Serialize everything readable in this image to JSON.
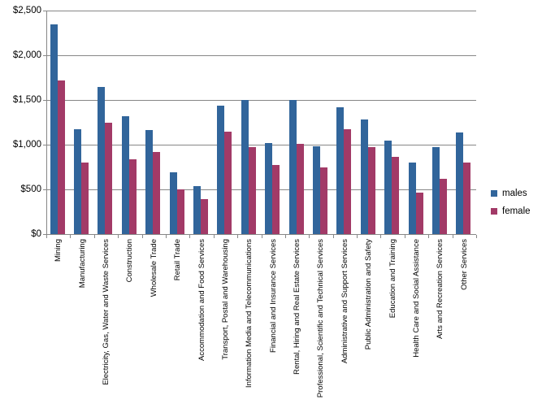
{
  "chart_data": {
    "type": "bar",
    "title": "",
    "xlabel": "",
    "ylabel": "",
    "categories": [
      "Mining",
      "Manufacturing",
      "Electricity, Gas, Water and Waste Services",
      "Construction",
      "Wholesale Trade",
      "Retail Trade",
      "Accommodation and Food Services",
      "Transport, Postal and Warehousing",
      "Information Media and Telecommunications",
      "Financial and Insurance Services",
      "Rental, Hiring and Real Estate Services",
      "Professional, Scientific and Technical Services",
      "Administrative and Support Services",
      "Public Administration and Safety",
      "Education and Training",
      "Health Care and Social Assistance",
      "Arts and Recreation Services",
      "Other Services"
    ],
    "series": [
      {
        "name": "males",
        "color": "#31659B",
        "values": [
          2350,
          1175,
          1650,
          1320,
          1160,
          695,
          540,
          1435,
          1500,
          1020,
          1500,
          985,
          1420,
          1280,
          1050,
          800,
          970,
          1140
        ]
      },
      {
        "name": "female",
        "color": "#A23A67",
        "values": [
          1720,
          800,
          1250,
          840,
          915,
          500,
          390,
          1145,
          970,
          775,
          1005,
          750,
          1170,
          975,
          860,
          460,
          620,
          800
        ]
      }
    ],
    "ylim": [
      0,
      2500
    ],
    "yticks": [
      {
        "value": 0,
        "label": "$0"
      },
      {
        "value": 500,
        "label": "$500"
      },
      {
        "value": 1000,
        "label": "$1,000"
      },
      {
        "value": 1500,
        "label": "$1,500"
      },
      {
        "value": 2000,
        "label": "$2,000"
      },
      {
        "value": 2500,
        "label": "$2,500"
      }
    ],
    "grid": true,
    "gridline_color": "#878787",
    "legend_position": "right"
  }
}
